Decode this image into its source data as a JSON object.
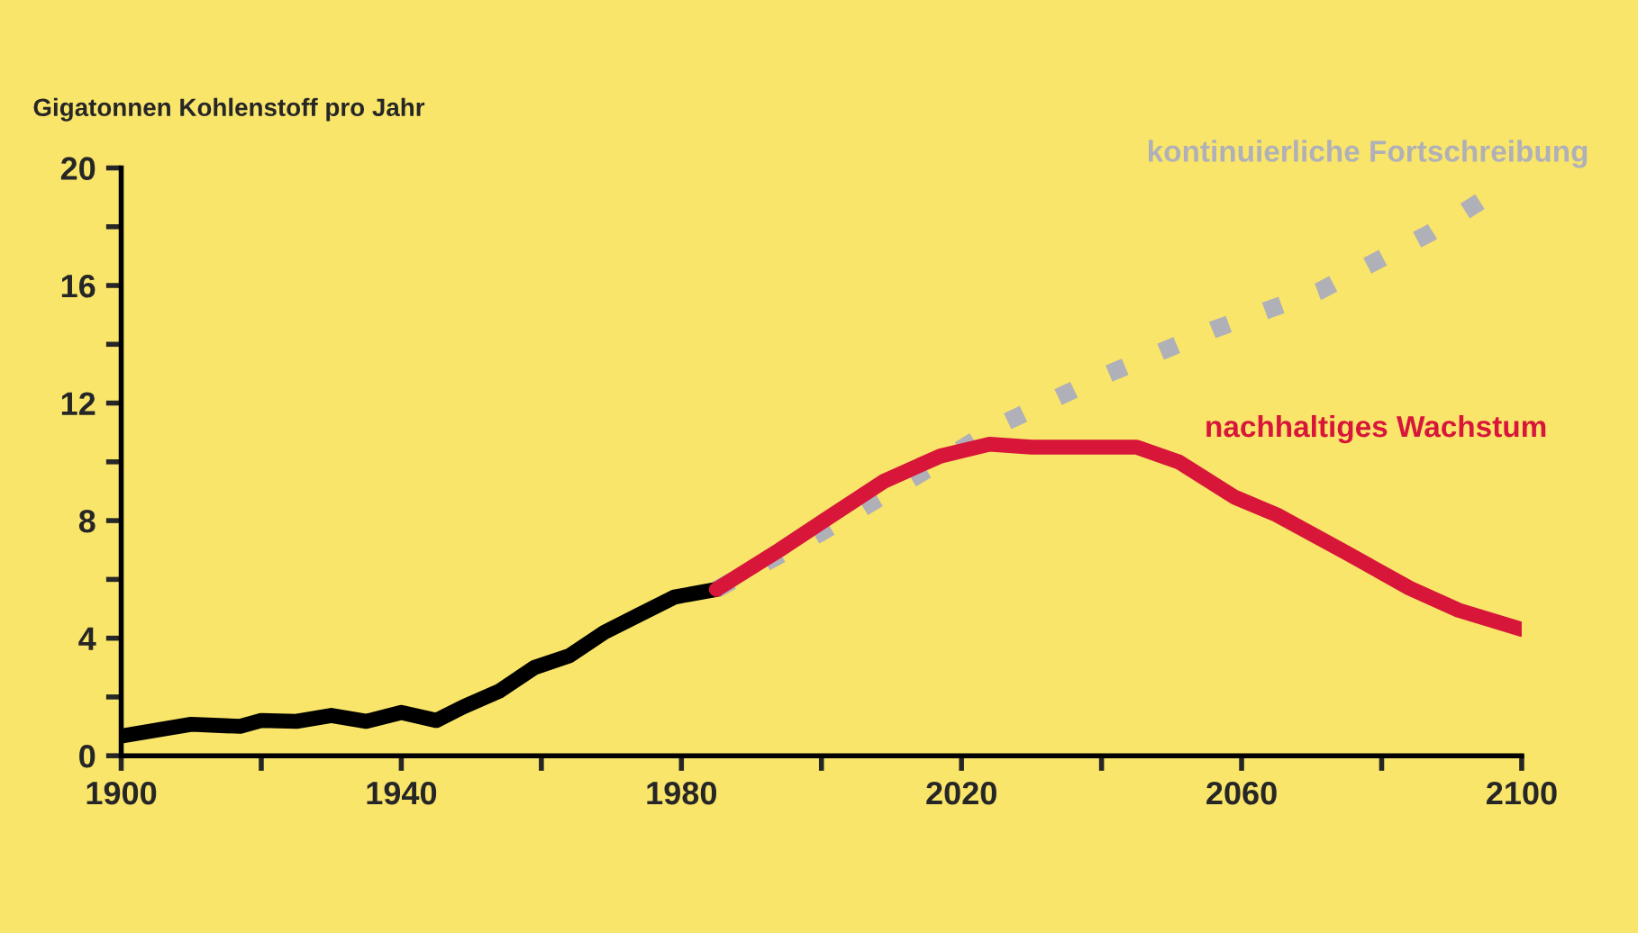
{
  "chart_data": {
    "type": "line",
    "ylabel": "Gigatonnen Kohlenstoff pro Jahr",
    "xlim": [
      1900,
      2100
    ],
    "xticks": [
      1900,
      {
        "value": 1920,
        "label": null
      },
      1940,
      {
        "value": 1960,
        "label": null
      },
      1980,
      {
        "value": 2000,
        "label": null
      },
      2020,
      {
        "value": 2040,
        "label": null
      },
      2060,
      {
        "value": 2080,
        "label": null
      },
      2100
    ],
    "ylim": [
      0,
      20
    ],
    "yticks": [
      0,
      {
        "value": 2,
        "label": null
      },
      4,
      {
        "value": 6,
        "label": null
      },
      8,
      {
        "value": 10,
        "label": null
      },
      12,
      {
        "value": 14,
        "label": null
      },
      16,
      {
        "value": 18,
        "label": null
      },
      20
    ],
    "grid": false,
    "legend": false,
    "marker": "none",
    "series": [
      {
        "color": "#b0b0b8",
        "line_style": "dotted",
        "x": [
          1985,
          2000,
          2017,
          2025,
          2040,
          2056,
          2071,
          2087,
          2095
        ],
        "values": [
          5.66,
          7.6,
          10.0,
          11.2,
          12.9,
          14.5,
          15.8,
          17.8,
          19.0
        ]
      },
      {
        "color": "#000000",
        "line_style": "solid",
        "x": [
          1900,
          1910,
          1917,
          1920,
          1925,
          1930,
          1935,
          1940,
          1945,
          1949,
          1954,
          1959,
          1964,
          1969,
          1974,
          1979,
          1985
        ],
        "values": [
          0.67,
          1.07,
          1.0,
          1.2,
          1.17,
          1.37,
          1.17,
          1.47,
          1.2,
          1.68,
          2.2,
          3.0,
          3.4,
          4.2,
          4.8,
          5.4,
          5.66
        ]
      },
      {
        "color": "#d7163a",
        "line_style": "solid",
        "x": [
          1985,
          1994,
          2001,
          2009,
          2017,
          2024,
          2030,
          2045,
          2051,
          2059,
          2065,
          2075,
          2084,
          2091,
          2100
        ],
        "values": [
          5.66,
          7.0,
          8.1,
          9.35,
          10.2,
          10.6,
          10.5,
          10.5,
          10.0,
          8.8,
          8.2,
          6.9,
          5.7,
          4.95,
          4.3
        ]
      }
    ],
    "annotations": [
      "kontinuierliche Fortschreibung",
      "nachhaltiges Wachstum"
    ]
  }
}
